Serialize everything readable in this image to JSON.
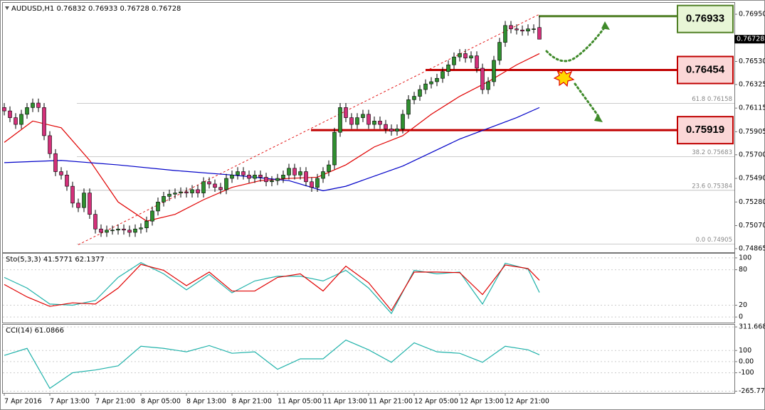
{
  "chart_data": [
    {
      "type": "candlestick",
      "title": "AUDUSD,H1 0.76832 0.76933 0.76728 0.76728",
      "up_color": "#2f8f2f",
      "down_color": "#d4307a",
      "ylim": [
        0.74833,
        0.77045
      ],
      "yticks": [
        {
          "value": 0.7695,
          "label": "0.76950"
        },
        {
          "value": 0.7653,
          "label": "0.76530"
        },
        0.76325,
        0.76115,
        0.75905,
        {
          "value": 0.757,
          "label": "0.75700"
        },
        {
          "value": 0.7549,
          "label": "0.75490"
        },
        {
          "value": 0.7528,
          "label": "0.75280"
        },
        {
          "value": 0.7507,
          "label": "0.75070"
        },
        0.74865
      ],
      "x_labels": [
        "7 Apr 2016",
        "7 Apr 13:00",
        "7 Apr 21:00",
        "8 Apr 05:00",
        "8 Apr 13:00",
        "8 Apr 21:00",
        "11 Apr 05:00",
        "11 Apr 13:00",
        "11 Apr 21:00",
        "12 Apr 05:00",
        "12 Apr 13:00",
        "12 Apr 21:00"
      ],
      "open": [
        0.7612,
        0.7609,
        0.7603,
        0.7597,
        0.7606,
        0.7612,
        0.7616,
        0.7612,
        0.7587,
        0.7571,
        0.7555,
        0.7552,
        0.7542,
        0.7527,
        0.7523,
        0.7536,
        0.7517,
        0.7504,
        0.7501,
        0.7503,
        0.7503,
        0.7504,
        0.7503,
        0.7501,
        0.7504,
        0.7505,
        0.7511,
        0.752,
        0.7528,
        0.7533,
        0.7535,
        0.7536,
        0.7537,
        0.7536,
        0.7539,
        0.7536,
        0.7546,
        0.7544,
        0.7541,
        0.7539,
        0.7549,
        0.7552,
        0.7555,
        0.7552,
        0.7549,
        0.7552,
        0.755,
        0.7546,
        0.7547,
        0.7549,
        0.7552,
        0.7558,
        0.7552,
        0.7555,
        0.7546,
        0.7541,
        0.7549,
        0.7555,
        0.7561,
        0.759,
        0.7612,
        0.7603,
        0.7597,
        0.7603,
        0.7606,
        0.7597,
        0.76,
        0.7597,
        0.7593,
        0.7591,
        0.7593,
        0.7606,
        0.7619,
        0.7622,
        0.7628,
        0.7633,
        0.7635,
        0.7638,
        0.7644,
        0.765,
        0.7657,
        0.766,
        0.7656,
        0.7658,
        0.7647,
        0.7628,
        0.7635,
        0.7654,
        0.767,
        0.7685,
        0.7682,
        0.7681,
        0.768,
        0.7682,
        0.76832
      ],
      "high": [
        0.7616,
        0.7613,
        0.7607,
        0.761,
        0.7616,
        0.762,
        0.762,
        0.7616,
        0.7591,
        0.7575,
        0.7559,
        0.7556,
        0.7546,
        0.7531,
        0.754,
        0.754,
        0.7521,
        0.7508,
        0.7507,
        0.7507,
        0.7508,
        0.7508,
        0.7507,
        0.7508,
        0.7509,
        0.7515,
        0.7524,
        0.7532,
        0.7537,
        0.7539,
        0.754,
        0.7541,
        0.7541,
        0.7543,
        0.7543,
        0.755,
        0.755,
        0.7548,
        0.7545,
        0.7553,
        0.7556,
        0.7559,
        0.7559,
        0.7556,
        0.7556,
        0.7556,
        0.7554,
        0.7551,
        0.7553,
        0.7556,
        0.7562,
        0.7562,
        0.7559,
        0.7559,
        0.755,
        0.7553,
        0.7559,
        0.7565,
        0.7594,
        0.7616,
        0.7616,
        0.7607,
        0.7607,
        0.761,
        0.761,
        0.7604,
        0.7604,
        0.7601,
        0.7597,
        0.7597,
        0.761,
        0.7623,
        0.7626,
        0.7632,
        0.7637,
        0.7639,
        0.7642,
        0.7648,
        0.7654,
        0.7661,
        0.7664,
        0.7664,
        0.7662,
        0.7662,
        0.7651,
        0.7639,
        0.7658,
        0.7674,
        0.7689,
        0.7689,
        0.7686,
        0.7685,
        0.7686,
        0.7686,
        0.76933
      ],
      "low": [
        0.7605,
        0.7599,
        0.7593,
        0.7593,
        0.7602,
        0.7608,
        0.7608,
        0.7583,
        0.7567,
        0.7551,
        0.7548,
        0.7538,
        0.7523,
        0.7519,
        0.7519,
        0.7513,
        0.75,
        0.7497,
        0.7497,
        0.7499,
        0.7499,
        0.7499,
        0.7497,
        0.7497,
        0.75,
        0.7501,
        0.7507,
        0.7516,
        0.7524,
        0.7529,
        0.7531,
        0.7532,
        0.7532,
        0.7532,
        0.7532,
        0.7532,
        0.754,
        0.7537,
        0.7535,
        0.7535,
        0.7545,
        0.7548,
        0.7548,
        0.7545,
        0.7545,
        0.7546,
        0.7542,
        0.7542,
        0.7543,
        0.7545,
        0.7548,
        0.7548,
        0.7548,
        0.7542,
        0.7537,
        0.7537,
        0.7545,
        0.7551,
        0.7557,
        0.7586,
        0.7599,
        0.7593,
        0.7593,
        0.7599,
        0.7593,
        0.7593,
        0.7593,
        0.7589,
        0.7587,
        0.7587,
        0.7589,
        0.7602,
        0.7615,
        0.7618,
        0.7624,
        0.7629,
        0.7631,
        0.7634,
        0.764,
        0.7646,
        0.7653,
        0.7652,
        0.7652,
        0.7643,
        0.7624,
        0.7624,
        0.7631,
        0.765,
        0.7666,
        0.7678,
        0.7677,
        0.7676,
        0.7676,
        0.7678,
        0.76728
      ],
      "close": [
        0.7609,
        0.7603,
        0.7597,
        0.7606,
        0.7612,
        0.7616,
        0.7612,
        0.7587,
        0.7571,
        0.7555,
        0.7552,
        0.7542,
        0.7527,
        0.7523,
        0.7536,
        0.7517,
        0.7504,
        0.7501,
        0.7503,
        0.7503,
        0.7504,
        0.7503,
        0.7501,
        0.7504,
        0.7505,
        0.7511,
        0.752,
        0.7528,
        0.7533,
        0.7535,
        0.7536,
        0.7537,
        0.7536,
        0.7539,
        0.7536,
        0.7546,
        0.7544,
        0.7541,
        0.7539,
        0.7549,
        0.7552,
        0.7555,
        0.7552,
        0.7549,
        0.7552,
        0.755,
        0.7546,
        0.7547,
        0.7549,
        0.7552,
        0.7558,
        0.7552,
        0.7555,
        0.7546,
        0.7541,
        0.7549,
        0.7555,
        0.7561,
        0.759,
        0.7612,
        0.7603,
        0.7597,
        0.7603,
        0.7606,
        0.7597,
        0.76,
        0.7597,
        0.7593,
        0.7591,
        0.7593,
        0.7606,
        0.7619,
        0.7622,
        0.7628,
        0.7633,
        0.7635,
        0.7638,
        0.7644,
        0.765,
        0.7657,
        0.766,
        0.7656,
        0.7658,
        0.7647,
        0.7628,
        0.7635,
        0.7654,
        0.767,
        0.7685,
        0.7682,
        0.7681,
        0.768,
        0.7682,
        0.7682,
        0.76728
      ],
      "series": [
        {
          "color": "#e00000",
          "x": [
            0,
            5,
            10,
            15,
            20,
            25,
            30,
            35,
            40,
            45,
            50,
            55,
            60,
            65,
            70,
            75,
            80,
            85,
            90,
            94
          ],
          "values": [
            0.7581,
            0.76,
            0.7594,
            0.7565,
            0.7528,
            0.7511,
            0.7517,
            0.753,
            0.7541,
            0.7547,
            0.7549,
            0.755,
            0.7561,
            0.7577,
            0.7587,
            0.7606,
            0.7622,
            0.7635,
            0.765,
            0.766
          ]
        },
        {
          "color": "#0000c8",
          "x": [
            0,
            10,
            20,
            30,
            40,
            50,
            56,
            60,
            70,
            80,
            90,
            94
          ],
          "values": [
            0.7563,
            0.7565,
            0.7561,
            0.7556,
            0.7552,
            0.7547,
            0.7538,
            0.7542,
            0.756,
            0.7584,
            0.7603,
            0.7612
          ]
        }
      ],
      "trendline": {
        "color": "#e00000",
        "x": [
          13,
          94
        ],
        "values": [
          0.749,
          0.7695
        ]
      },
      "fib_levels": [
        {
          "label": "61.8 0.76158",
          "value": 0.76158
        },
        {
          "label": "38.2 0.75683",
          "value": 0.75683
        },
        {
          "label": "23.6 0.75384",
          "value": 0.75384
        },
        {
          "label": "0.0 0.74905",
          "value": 0.74905
        }
      ],
      "levels": [
        {
          "value": 0.76933,
          "color": "#4f7f24",
          "fill": "#e8f6d6"
        },
        {
          "value": 0.76454,
          "color": "#c00000",
          "fill": "#fbd7d7"
        },
        {
          "value": 0.75919,
          "color": "#c00000",
          "fill": "#fbd7d7"
        }
      ]
    },
    {
      "type": "line",
      "title": "Sto(5,3,3) 41.5771 62.1377",
      "ylim": [
        -9.4,
        105.9
      ],
      "yticks": [
        100,
        80,
        20,
        0
      ],
      "x": [
        0,
        4,
        8,
        12,
        16,
        20,
        24,
        28,
        32,
        36,
        40,
        44,
        48,
        52,
        56,
        60,
        64,
        68,
        72,
        76,
        80,
        84,
        88,
        92,
        94
      ],
      "series": [
        {
          "color": "#20b2aa",
          "values": [
            67,
            49,
            22,
            20,
            28,
            67,
            92,
            73,
            46,
            72,
            41,
            61,
            69,
            69,
            61,
            79,
            49,
            6,
            79,
            73,
            76,
            22,
            91,
            81,
            41.5771
          ]
        },
        {
          "color": "#e00000",
          "values": [
            55,
            34,
            18,
            24,
            22,
            49,
            89,
            79,
            53,
            76,
            44,
            44,
            67,
            73,
            44,
            86,
            58,
            11,
            76,
            76,
            75,
            38,
            88,
            82,
            62.1377
          ]
        }
      ]
    },
    {
      "type": "line",
      "title": "CCI(14) 61.0866",
      "ylim": [
        -275,
        325
      ],
      "yticks": [
        311.6683,
        100,
        {
          "value": 0,
          "label": "0.00"
        },
        -100,
        -265.7722
      ],
      "x": [
        0,
        4,
        8,
        12,
        16,
        20,
        24,
        28,
        32,
        36,
        40,
        44,
        48,
        52,
        56,
        60,
        64,
        68,
        72,
        76,
        80,
        84,
        88,
        92,
        94
      ],
      "series": [
        {
          "color": "#20b2aa",
          "values": [
            56,
            119,
            -240,
            -100,
            -75,
            -38,
            138,
            119,
            88,
            144,
            75,
            88,
            -69,
            25,
            25,
            194,
            106,
            -6,
            169,
            88,
            75,
            -6,
            138,
            106,
            61.0866
          ]
        }
      ]
    }
  ]
}
